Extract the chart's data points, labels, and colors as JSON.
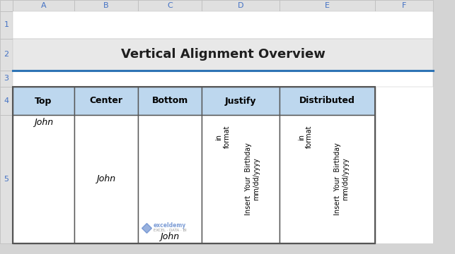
{
  "title": "Vertical Alignment Overview",
  "col_headers": [
    "Top",
    "Center",
    "Bottom",
    "Justify",
    "Distributed"
  ],
  "col_letters": [
    "A",
    "B",
    "C",
    "D",
    "E",
    "F"
  ],
  "row_numbers": [
    "1",
    "2",
    "3",
    "4",
    "5"
  ],
  "header_bg": "#BDD7EE",
  "title_bg": "#E8E8E8",
  "grid_color": "#BBBBBB",
  "border_color": "#555555",
  "blue_line_color": "#2E74B5",
  "col_header_color": "#BDD7EE",
  "row_header_bg": "#E0E0E0",
  "col_letter_bg": "#E0E0E0",
  "text_color": "#000000",
  "title_color": "#1F1F1F",
  "background": "#D4D4D4",
  "rot_line1_e": "Insert  Your  Birthday",
  "rot_line2_e": "mm/dd/yyyy",
  "rot_line3_e": "in",
  "rot_line4_e": "format",
  "rot_line1_f": "Insert  Your  Birthday",
  "rot_line2_f": "mm/dd/yyyy",
  "rot_line3_f": "in",
  "rot_line4_f": "format",
  "watermark_text": "exceldemy",
  "watermark_sub": "EXCEL · DATA · BI",
  "col_left": [
    0,
    18,
    105,
    195,
    285,
    395,
    530,
    612
  ],
  "row_top": [
    0,
    16,
    55,
    100,
    123,
    163,
    345
  ]
}
